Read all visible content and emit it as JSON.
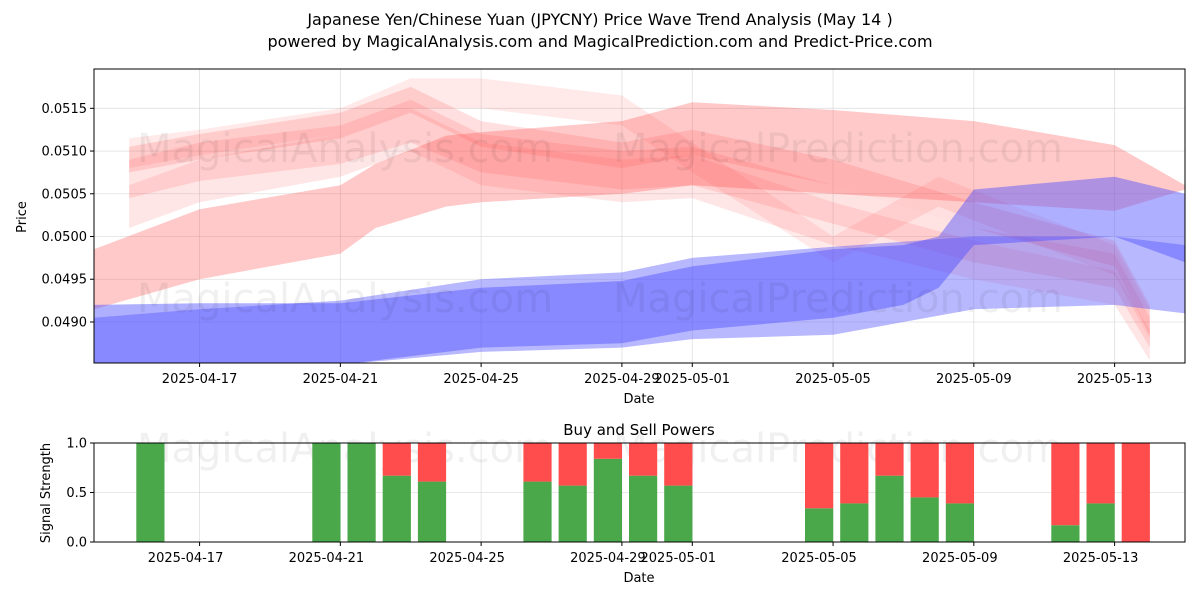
{
  "title_line1": "Japanese Yen/Chinese Yuan (JPYCNY) Price Wave Trend Analysis (May 14 )",
  "title_line2": "powered by MagicalAnalysis.com and MagicalPrediction.com and Predict-Price.com",
  "watermarks": [
    "MagicalAnalysis.com",
    "MagicalPrediction.com"
  ],
  "colors": {
    "sell": "#ff4d4d",
    "buy": "#4d4dff",
    "buy_bar": "#4aa84a",
    "sell_bar": "#ff4d4d"
  },
  "chart_data": [
    {
      "type": "area",
      "xlabel": "Date",
      "ylabel": "Price",
      "xlim": [
        "2025-04-14",
        "2025-05-15"
      ],
      "ylim": [
        0.04852,
        0.05196
      ],
      "grid": true,
      "x_ticks": [
        "2025-04-17",
        "2025-04-21",
        "2025-04-25",
        "2025-04-29",
        "2025-05-01",
        "2025-05-05",
        "2025-05-09",
        "2025-05-13"
      ],
      "y_ticks": [
        "0.0490",
        "0.0495",
        "0.0500",
        "0.0505",
        "0.0510",
        "0.0515"
      ],
      "y_tick_values": [
        0.049,
        0.0495,
        0.05,
        0.0505,
        0.051,
        0.0515
      ],
      "series": [
        {
          "color": "#ff4d4d",
          "opacity": 0.3,
          "x": [
            "2025-04-14",
            "2025-04-17",
            "2025-04-21",
            "2025-04-22",
            "2025-04-24",
            "2025-04-25",
            "2025-04-29",
            "2025-05-01",
            "2025-05-05",
            "2025-05-09",
            "2025-05-13",
            "2025-05-15"
          ],
          "upper": [
            0.04985,
            0.05032,
            0.0506,
            0.05085,
            0.05118,
            0.05122,
            0.05135,
            0.05157,
            0.05148,
            0.05135,
            0.05107,
            0.0506
          ],
          "lower": [
            0.04915,
            0.0495,
            0.0498,
            0.0501,
            0.05035,
            0.0504,
            0.0505,
            0.0506,
            0.0505,
            0.0504,
            0.0503,
            0.05055
          ]
        },
        {
          "color": "#ff4d4d",
          "opacity": 0.18,
          "x": [
            "2025-04-15",
            "2025-04-17",
            "2025-04-21",
            "2025-04-23",
            "2025-04-25",
            "2025-04-29",
            "2025-05-01",
            "2025-05-05",
            "2025-05-09",
            "2025-05-13",
            "2025-05-14"
          ],
          "upper": [
            0.05105,
            0.0512,
            0.05145,
            0.05175,
            0.05135,
            0.0511,
            0.05125,
            0.0509,
            0.0504,
            0.04995,
            0.0492
          ],
          "lower": [
            0.05075,
            0.0509,
            0.05115,
            0.05145,
            0.05105,
            0.0508,
            0.05095,
            0.0506,
            0.0501,
            0.04965,
            0.04885
          ]
        },
        {
          "color": "#ff4d4d",
          "opacity": 0.16,
          "x": [
            "2025-04-15",
            "2025-04-17",
            "2025-04-21",
            "2025-04-23",
            "2025-04-25",
            "2025-04-29",
            "2025-05-01",
            "2025-05-05",
            "2025-05-09",
            "2025-05-13",
            "2025-05-14"
          ],
          "upper": [
            0.0509,
            0.0511,
            0.0513,
            0.0516,
            0.0512,
            0.051,
            0.05105,
            0.0506,
            0.0501,
            0.0498,
            0.04905
          ],
          "lower": [
            0.05045,
            0.05065,
            0.05085,
            0.0511,
            0.05075,
            0.05055,
            0.0506,
            0.05015,
            0.0497,
            0.0494,
            0.0487
          ]
        },
        {
          "color": "#ff4d4d",
          "opacity": 0.14,
          "x": [
            "2025-04-15",
            "2025-04-17",
            "2025-04-21",
            "2025-04-23",
            "2025-04-25",
            "2025-04-29",
            "2025-05-01",
            "2025-05-05",
            "2025-05-09",
            "2025-05-13",
            "2025-05-14"
          ],
          "upper": [
            0.0506,
            0.0509,
            0.0512,
            0.0515,
            0.0511,
            0.0509,
            0.05095,
            0.0504,
            0.04995,
            0.0496,
            0.0489
          ],
          "lower": [
            0.0501,
            0.0504,
            0.0507,
            0.051,
            0.0506,
            0.0504,
            0.05045,
            0.0499,
            0.0495,
            0.0492,
            0.04855
          ]
        },
        {
          "color": "#ff4d4d",
          "opacity": 0.12,
          "x": [
            "2025-04-15",
            "2025-04-17",
            "2025-04-21",
            "2025-04-23",
            "2025-04-25",
            "2025-04-29",
            "2025-05-01",
            "2025-05-05",
            "2025-05-08",
            "2025-05-13",
            "2025-05-14"
          ],
          "upper": [
            0.05115,
            0.05125,
            0.0515,
            0.05185,
            0.05185,
            0.05165,
            0.0511,
            0.05,
            0.0507,
            0.0499,
            0.04915
          ],
          "lower": [
            0.0508,
            0.05095,
            0.0512,
            0.0515,
            0.0515,
            0.0513,
            0.05075,
            0.0497,
            0.05035,
            0.04955,
            0.0488
          ]
        },
        {
          "color": "#4d4dff",
          "opacity": 0.45,
          "x": [
            "2025-04-14",
            "2025-04-17",
            "2025-04-21",
            "2025-04-25",
            "2025-04-29",
            "2025-05-01",
            "2025-05-05",
            "2025-05-07",
            "2025-05-08",
            "2025-05-09",
            "2025-05-13",
            "2025-05-15"
          ],
          "upper": [
            0.0492,
            0.04922,
            0.04922,
            0.0494,
            0.04948,
            0.04965,
            0.04985,
            0.0499,
            0.05,
            0.05055,
            0.0507,
            0.0505
          ],
          "lower": [
            0.0485,
            0.04845,
            0.0485,
            0.0487,
            0.04875,
            0.0489,
            0.04905,
            0.0492,
            0.0494,
            0.0499,
            0.05,
            0.0497
          ]
        },
        {
          "color": "#4d4dff",
          "opacity": 0.4,
          "x": [
            "2025-04-14",
            "2025-04-17",
            "2025-04-21",
            "2025-04-25",
            "2025-04-29",
            "2025-05-01",
            "2025-05-05",
            "2025-05-09",
            "2025-05-13",
            "2025-05-15"
          ],
          "upper": [
            0.04905,
            0.04915,
            0.04925,
            0.0495,
            0.04958,
            0.04975,
            0.04988,
            0.05,
            0.05,
            0.0499
          ],
          "lower": [
            0.0484,
            0.04845,
            0.0485,
            0.04865,
            0.0487,
            0.0488,
            0.04885,
            0.04915,
            0.0492,
            0.0491
          ]
        }
      ]
    },
    {
      "type": "bar",
      "title": "Buy and Sell Powers",
      "xlabel": "Date",
      "ylabel": "Signal Strength",
      "ylim": [
        0,
        1.0
      ],
      "y_ticks": [
        "0.0",
        "0.5",
        "1.0"
      ],
      "x_ticks": [
        "2025-04-17",
        "2025-04-21",
        "2025-04-25",
        "2025-04-29",
        "2025-05-01",
        "2025-05-05",
        "2025-05-09",
        "2025-05-13"
      ],
      "grid": true,
      "bars": [
        {
          "date": "2025-04-16",
          "buy": 1.0
        },
        {
          "date": "2025-04-21",
          "buy": 1.0
        },
        {
          "date": "2025-04-22",
          "buy": 1.0
        },
        {
          "date": "2025-04-23",
          "buy": 0.67
        },
        {
          "date": "2025-04-24",
          "buy": 0.61
        },
        {
          "date": "2025-04-27",
          "buy": 0.61
        },
        {
          "date": "2025-04-28",
          "buy": 0.57
        },
        {
          "date": "2025-04-29",
          "buy": 0.84
        },
        {
          "date": "2025-04-30",
          "buy": 0.67
        },
        {
          "date": "2025-05-01",
          "buy": 0.57
        },
        {
          "date": "2025-05-05",
          "buy": 0.34
        },
        {
          "date": "2025-05-06",
          "buy": 0.39
        },
        {
          "date": "2025-05-07",
          "buy": 0.67
        },
        {
          "date": "2025-05-08",
          "buy": 0.45
        },
        {
          "date": "2025-05-09",
          "buy": 0.39
        },
        {
          "date": "2025-05-12",
          "buy": 0.17
        },
        {
          "date": "2025-05-13",
          "buy": 0.39
        },
        {
          "date": "2025-05-14",
          "buy": 0.0
        }
      ]
    }
  ]
}
